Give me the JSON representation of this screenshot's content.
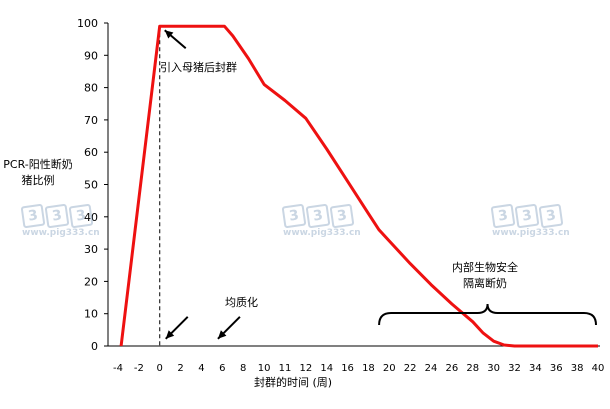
{
  "watermark": {
    "digits": [
      "3",
      "3",
      "3"
    ],
    "site": "www.pig333.cn",
    "color": "#6a8cb0"
  },
  "chart_data": {
    "type": "line",
    "xlabel": "封群的时间 (周)",
    "ylabel": "PCR-阳性断奶猪比例",
    "xlim": [
      -4,
      40
    ],
    "ylim": [
      0,
      100
    ],
    "x_ticks": [
      -4,
      -2,
      0,
      2,
      4,
      6,
      8,
      10,
      11,
      12,
      14,
      16,
      18,
      20,
      22,
      24,
      26,
      28,
      30,
      32,
      34,
      36,
      38,
      40
    ],
    "y_ticks": [
      0,
      10,
      20,
      30,
      40,
      50,
      60,
      70,
      80,
      90,
      100
    ],
    "series": [
      {
        "color": "#ee1111",
        "points": [
          [
            -3.7,
            0
          ],
          [
            0,
            99
          ],
          [
            6.2,
            99
          ],
          [
            7,
            96
          ],
          [
            8.5,
            89
          ],
          [
            10,
            81
          ],
          [
            11,
            76
          ],
          [
            12,
            70.5
          ],
          [
            14,
            61
          ],
          [
            16,
            51
          ],
          [
            18,
            41
          ],
          [
            19,
            36
          ],
          [
            20,
            32.5
          ],
          [
            22,
            25.5
          ],
          [
            24,
            19
          ],
          [
            26,
            13
          ],
          [
            28,
            7.5
          ],
          [
            29,
            4
          ],
          [
            30,
            1.5
          ],
          [
            31,
            0.3
          ],
          [
            32,
            0
          ],
          [
            40,
            0
          ]
        ]
      }
    ],
    "reference_line": {
      "x": 0,
      "style": "dashed"
    },
    "annotations": [
      {
        "text": "引入母猪后封群",
        "arrow_to": [
          0,
          99
        ]
      },
      {
        "text": "均质化",
        "arrows_to": [
          [
            0,
            1
          ],
          [
            5,
            1
          ]
        ]
      },
      {
        "text": "内部生物安全\n隔离断奶",
        "brace_x_range": [
          19.5,
          40
        ]
      }
    ]
  }
}
